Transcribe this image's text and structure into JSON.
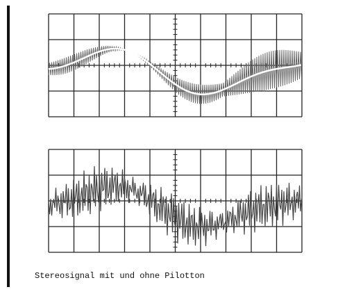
{
  "caption": "Stereosignal mit und ohne Pilotton"
}
